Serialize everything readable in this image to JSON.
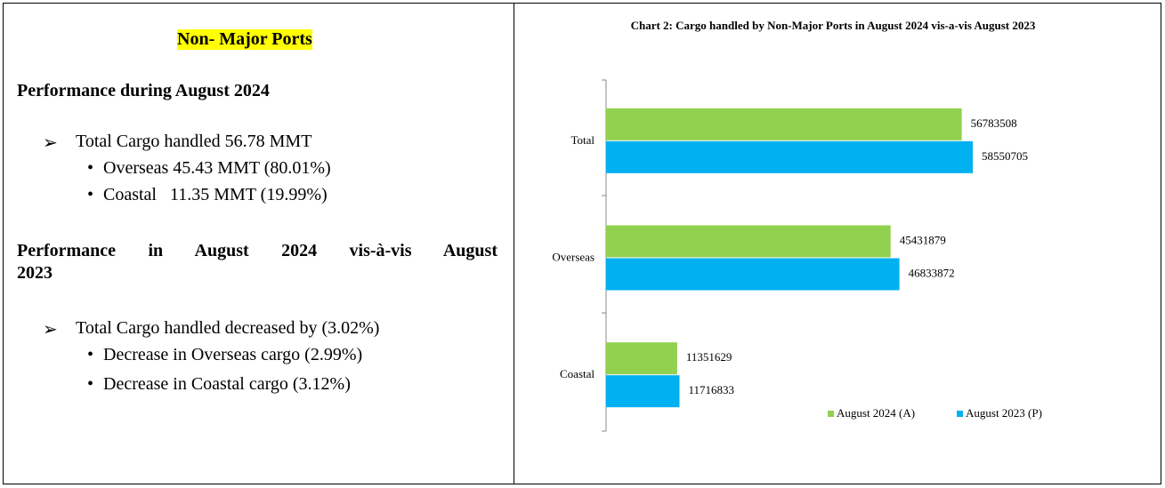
{
  "left": {
    "title": "Non- Major Ports",
    "section1": {
      "heading": "Performance during August 2024",
      "item": "Total Cargo handled 56.78 MMT",
      "subitems": [
        "Overseas 45.43 MMT (80.01%)",
        "Coastal   11.35 MMT (19.99%)"
      ]
    },
    "section2": {
      "heading_line1": "Performance in August 2024 vis-à-vis August",
      "heading_line2": "2023",
      "item": "Total Cargo handled decreased by (3.02%)",
      "subitems": [
        "Decrease in Overseas cargo (2.99%)",
        "Decrease in Coastal cargo (3.12%)"
      ]
    }
  },
  "chart_data": {
    "type": "hbar",
    "title": "Chart 2: Cargo handled by Non-Major Ports in August 2024 vis-a-vis August 2023",
    "categories": [
      "Total",
      "Overseas",
      "Coastal"
    ],
    "series": [
      {
        "name": "August 2024 (A)",
        "color": "#92d050",
        "values": [
          56783508,
          45431879,
          11351629
        ]
      },
      {
        "name": "August 2023 (P)",
        "color": "#00b0f0",
        "values": [
          58550705,
          46833872,
          11716833
        ]
      }
    ],
    "xlim": [
      0,
      80000000
    ]
  }
}
